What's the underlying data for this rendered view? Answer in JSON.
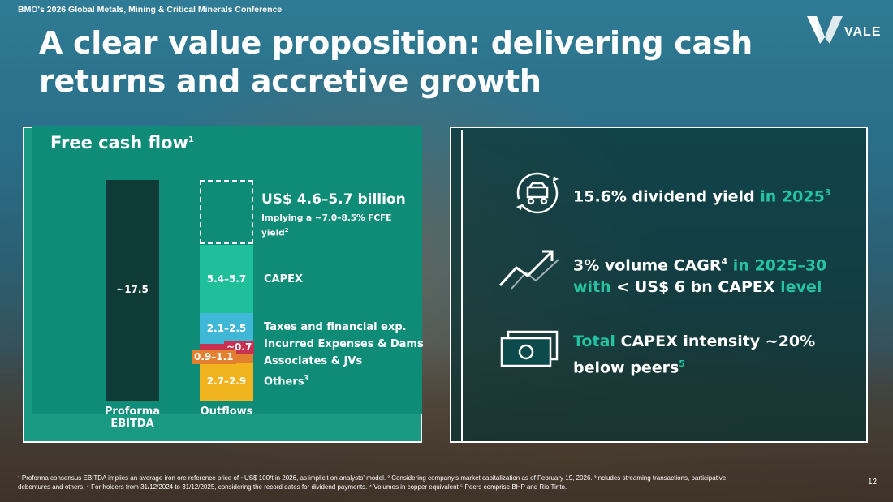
{
  "header": {
    "conference": "BMO's 2026 Global Metals, Mining & Critical Minerals Conference",
    "title": "A clear value proposition: delivering cash returns and accretive growth",
    "logo_text": "VALE"
  },
  "fcf": {
    "title": "Free cash flow",
    "title_sup": "1",
    "ebitda_value": "~17.5",
    "ebitda_label": "Proforma EBITDA",
    "outflows_label": "Outflows",
    "fcf_range": "US$ 4.6–5.7 billion",
    "fcf_sub": "Implying a ~7.0–8.5% FCFE yield",
    "fcf_sub_sup": "2",
    "segments": [
      {
        "value": "5.4–5.7",
        "label": "CAPEX",
        "color": "#1fbf9b"
      },
      {
        "value": "2.1–2.5",
        "label": "Taxes and financial exp.",
        "color": "#3fb8d8"
      },
      {
        "value": "~0.7",
        "label": "Incurred Expenses & Dams",
        "color": "#c8314f"
      },
      {
        "value": "0.9–1.1",
        "label": "Associates & JVs",
        "color": "#e2802f"
      },
      {
        "value": "2.7–2.9",
        "label": "Others",
        "label_sup": "3",
        "color": "#f2b41e"
      }
    ]
  },
  "kpis": [
    {
      "icon": "cart-cycle-icon",
      "text_a": "15.6% dividend yield",
      "text_b": " in 2025",
      "sup": "3"
    },
    {
      "icon": "growth-arrow-icon",
      "text_a": "3% volume CAGR",
      "sup": "4",
      "text_b": " in 2025–30",
      "text_c": "with",
      "text_d": " < US$ 6 bn CAPEX",
      "text_e": " level"
    },
    {
      "icon": "banknotes-icon",
      "text_a": "Total",
      "text_b": " CAPEX intensity ~20%",
      "text_c": "below peers",
      "sup": "5"
    }
  ],
  "footer": {
    "footnote_line1": "¹ Proforma consensus EBITDA implies an average  iron ore reference price of ~US$ 100/t in 2026,  as implicit on analysts' model.  ² Considering company's market capitalization as of February 19, 2026. ³Includes streaming transactions, participative",
    "footnote_line2": "debentures and others. ⁴ For holders from 31/12/2024 to 31/12/2025, considering the record dates for dividend payments. ⁴ Volumes in copper equivalent ⁵ Peers comprise BHP and Rio Tinto.",
    "page": "12"
  },
  "colors": {
    "teal_text": "#24c3a3",
    "panel_green": "#0f8c77",
    "ebitda_bar": "#0f3b36"
  }
}
